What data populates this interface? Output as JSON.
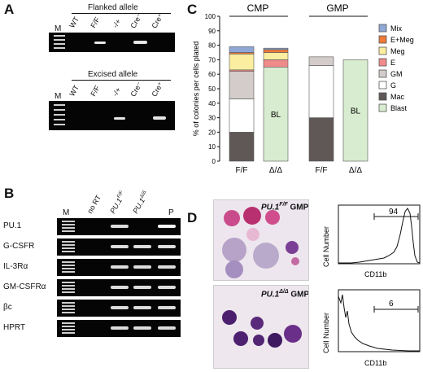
{
  "panels": {
    "A": {
      "letter": "A",
      "flanked_title": "Flanked allele",
      "excised_title": "Excised allele",
      "lanes": [
        "M",
        "WT",
        "F/F",
        "-/+",
        "Cre⁻",
        "Cre⁺"
      ]
    },
    "B": {
      "letter": "B",
      "lanes": [
        "M",
        "no RT",
        "PU.1F/F",
        "PU.1Δ/Δ",
        "P"
      ],
      "rows": [
        "PU.1",
        "G-CSFR",
        "IL-3Rα",
        "GM-CSFRα",
        "βc",
        "HPRT"
      ]
    },
    "C": {
      "letter": "C",
      "group_cmp": "CMP",
      "group_gmp": "GMP",
      "bl_label": "BL"
    },
    "D": {
      "letter": "D",
      "ff_label_pre": "PU.1",
      "ff_label_sup": "F/F",
      "ff_label_post": " GMP",
      "dd_label_pre": "PU.1",
      "dd_label_sup": "Δ/Δ",
      "dd_label_post": " GMP",
      "flow_top_value": "94",
      "flow_bottom_value": "6",
      "flow_ylabel": "Cell Number",
      "flow_xlabel": "CD11b"
    }
  },
  "chart_data": {
    "type": "bar",
    "stacked": true,
    "ylabel": "% of colonies per cells plated",
    "ylim": [
      0,
      100
    ],
    "yticks": [
      0,
      10,
      20,
      30,
      40,
      50,
      60,
      70,
      80,
      90,
      100
    ],
    "categories": [
      "F/F",
      "Δ/Δ",
      "F/F",
      "Δ/Δ"
    ],
    "groups": [
      "CMP",
      "CMP",
      "GMP",
      "GMP"
    ],
    "series": [
      {
        "name": "Blast",
        "color": "#d8ecd0",
        "values": [
          0,
          65,
          0,
          70
        ]
      },
      {
        "name": "Mac",
        "color": "#5f5857",
        "values": [
          20,
          0,
          30,
          0
        ]
      },
      {
        "name": "G",
        "color": "#ffffff",
        "values": [
          23,
          0,
          36,
          0
        ]
      },
      {
        "name": "GM",
        "color": "#d3cccb",
        "values": [
          19,
          0,
          6,
          0
        ]
      },
      {
        "name": "E",
        "color": "#f08b8b",
        "values": [
          1,
          5,
          0,
          0
        ]
      },
      {
        "name": "Meg",
        "color": "#fbeea0",
        "values": [
          11,
          5,
          0,
          0
        ]
      },
      {
        "name": "E+Meg",
        "color": "#ef7a3a",
        "values": [
          1,
          2,
          0,
          0
        ]
      },
      {
        "name": "Mix",
        "color": "#8fa8d6",
        "values": [
          4,
          1,
          0,
          0
        ]
      }
    ],
    "legend": [
      "Mix",
      "E+Meg",
      "Meg",
      "E",
      "GM",
      "G",
      "Mac",
      "Blast"
    ],
    "legend_position": "right"
  }
}
